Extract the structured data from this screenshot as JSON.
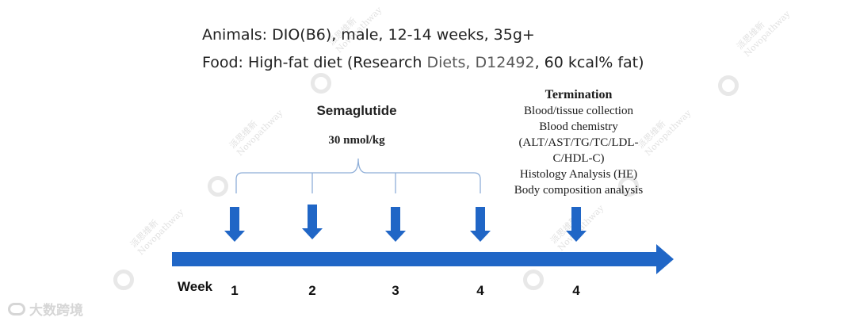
{
  "header": {
    "animals": "Animals: DIO(B6), male, 12-14 weeks, 35g+",
    "food_prefix": "Food: High-fat diet (Research ",
    "food_source": "Diets, D12492",
    "food_suffix": ", 60 kcal% fat)"
  },
  "treatment": {
    "drug": "Semaglutide",
    "dose": "30 nmol/kg"
  },
  "termination": {
    "title": "Termination",
    "lines": [
      "Blood/tissue collection",
      "Blood chemistry",
      "(ALT/AST/TG/TC/LDL-",
      "C/HDL-C)",
      "Histology Analysis (HE)",
      "Body composition analysis"
    ]
  },
  "timeline": {
    "axis_label": "Week",
    "dose_weeks": [
      "1",
      "2",
      "3",
      "4"
    ],
    "termination_week": "4"
  },
  "watermark": {
    "company_cn": "派思维新",
    "company_en": "Novopathway",
    "source_badge": "大数跨境"
  },
  "colors": {
    "arrow_blue": "#2066c6",
    "bracket_blue": "#8eaed8",
    "watermark_gray": "#c9c9c9"
  }
}
